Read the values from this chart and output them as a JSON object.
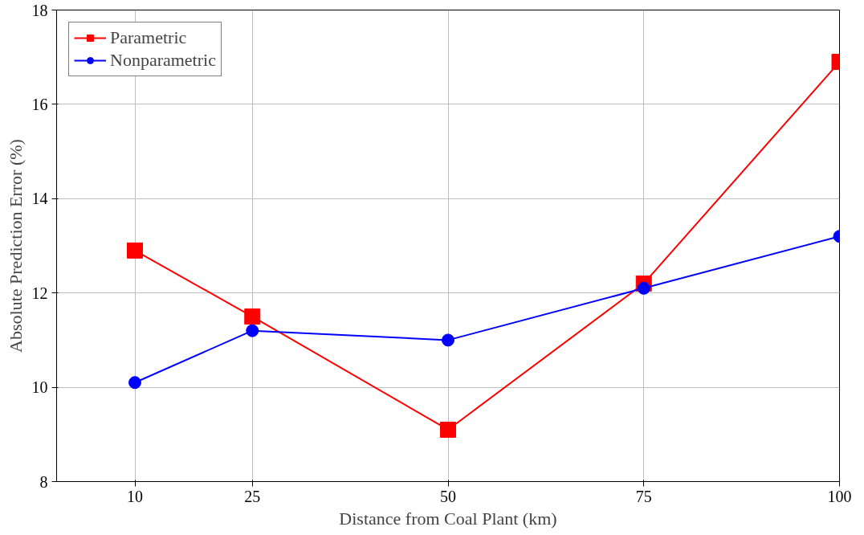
{
  "chart_data": {
    "type": "line",
    "xlabel": "Distance from Coal Plant (km)",
    "ylabel": "Absolute Prediction Error (%)",
    "x": [
      10,
      25,
      50,
      75,
      100
    ],
    "xlim": [
      0,
      100
    ],
    "xticks": [
      10,
      25,
      50,
      75,
      100
    ],
    "ylim": [
      8,
      18
    ],
    "yticks": [
      8,
      10,
      12,
      14,
      16,
      18
    ],
    "grid": true,
    "legend": "top left",
    "line_style": "solid",
    "series": [
      {
        "name": "Parametric",
        "color": "#ff0000",
        "marker": "square",
        "values": [
          12.9,
          11.5,
          9.1,
          12.2,
          16.9
        ]
      },
      {
        "name": "Nonparametric",
        "color": "#0000ff",
        "marker": "circle",
        "values": [
          10.1,
          11.2,
          11.0,
          12.1,
          13.2
        ]
      }
    ]
  }
}
